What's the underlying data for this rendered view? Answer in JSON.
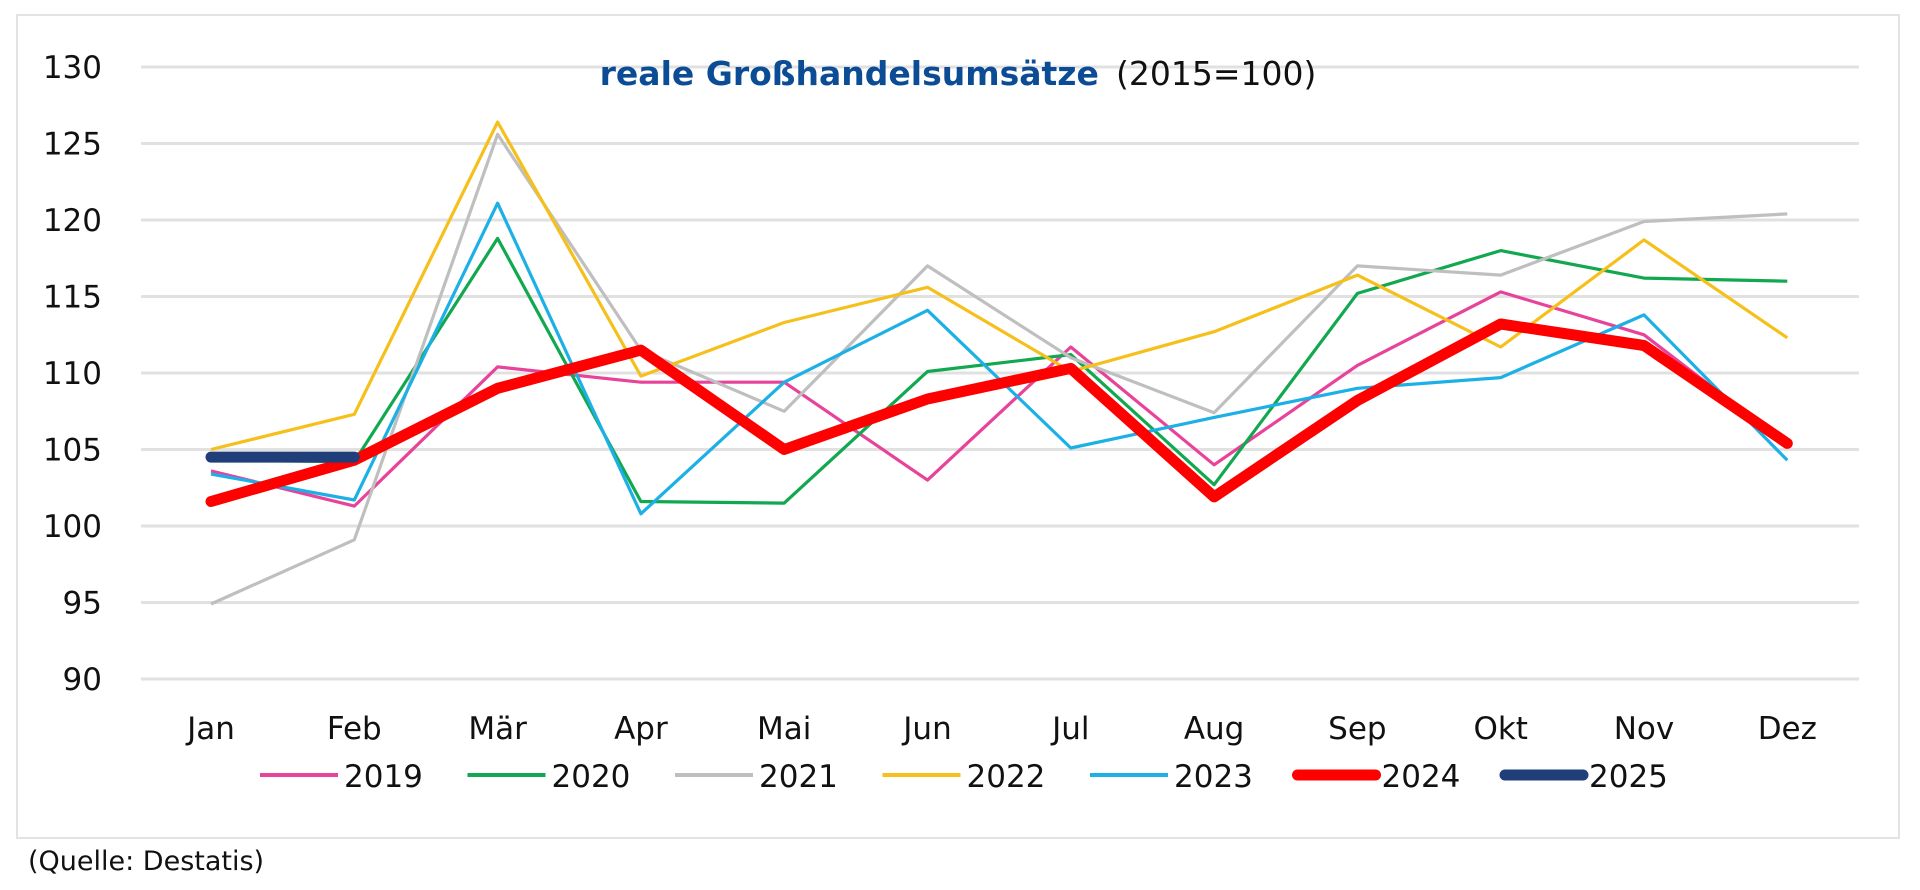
{
  "chart_data": {
    "type": "line",
    "title": "reale Großhandelsumsätze",
    "subtitle": "(2015=100)",
    "xlabel": "",
    "ylabel": "",
    "categories": [
      "Jan",
      "Feb",
      "Mär",
      "Apr",
      "Mai",
      "Jun",
      "Jul",
      "Aug",
      "Sep",
      "Okt",
      "Nov",
      "Dez"
    ],
    "ylim": [
      90,
      130
    ],
    "yticks": [
      130,
      125,
      120,
      115,
      110,
      105,
      100,
      95,
      90
    ],
    "grid": true,
    "legend_position": "bottom",
    "series": [
      {
        "name": "2019",
        "color": "#e8439a",
        "width": "thin",
        "values": [
          103.6,
          101.3,
          110.4,
          109.4,
          109.4,
          103.0,
          111.7,
          104.0,
          110.5,
          115.3,
          112.5,
          105.3
        ]
      },
      {
        "name": "2020",
        "color": "#12a84f",
        "width": "thin",
        "values": [
          104.3,
          104.2,
          118.8,
          101.6,
          101.5,
          110.1,
          111.2,
          102.7,
          115.2,
          118.0,
          116.2,
          116.0
        ]
      },
      {
        "name": "2021",
        "color": "#bfbfbf",
        "width": "thin",
        "values": [
          94.9,
          99.1,
          125.6,
          111.5,
          107.5,
          117.0,
          111.0,
          107.4,
          117.0,
          116.4,
          119.9,
          120.4
        ]
      },
      {
        "name": "2022",
        "color": "#f6c01c",
        "width": "thin",
        "values": [
          105.0,
          107.3,
          126.4,
          109.8,
          113.3,
          115.6,
          110.1,
          112.7,
          116.4,
          111.7,
          118.7,
          112.3
        ]
      },
      {
        "name": "2023",
        "color": "#1cb0e6",
        "width": "thin",
        "values": [
          103.4,
          101.7,
          121.1,
          100.8,
          109.4,
          114.1,
          105.1,
          107.1,
          109.0,
          109.7,
          113.8,
          104.3
        ]
      },
      {
        "name": "2024",
        "color": "#ff0000",
        "width": "thick",
        "values": [
          101.6,
          104.3,
          109.0,
          111.5,
          105.0,
          108.3,
          110.3,
          101.9,
          108.2,
          113.2,
          111.8,
          105.4
        ]
      },
      {
        "name": "2025",
        "color": "#203f7a",
        "width": "thick",
        "values": [
          104.5,
          104.5,
          null,
          null,
          null,
          null,
          null,
          null,
          null,
          null,
          null,
          null
        ]
      }
    ]
  },
  "source": "(Quelle: Destatis)"
}
